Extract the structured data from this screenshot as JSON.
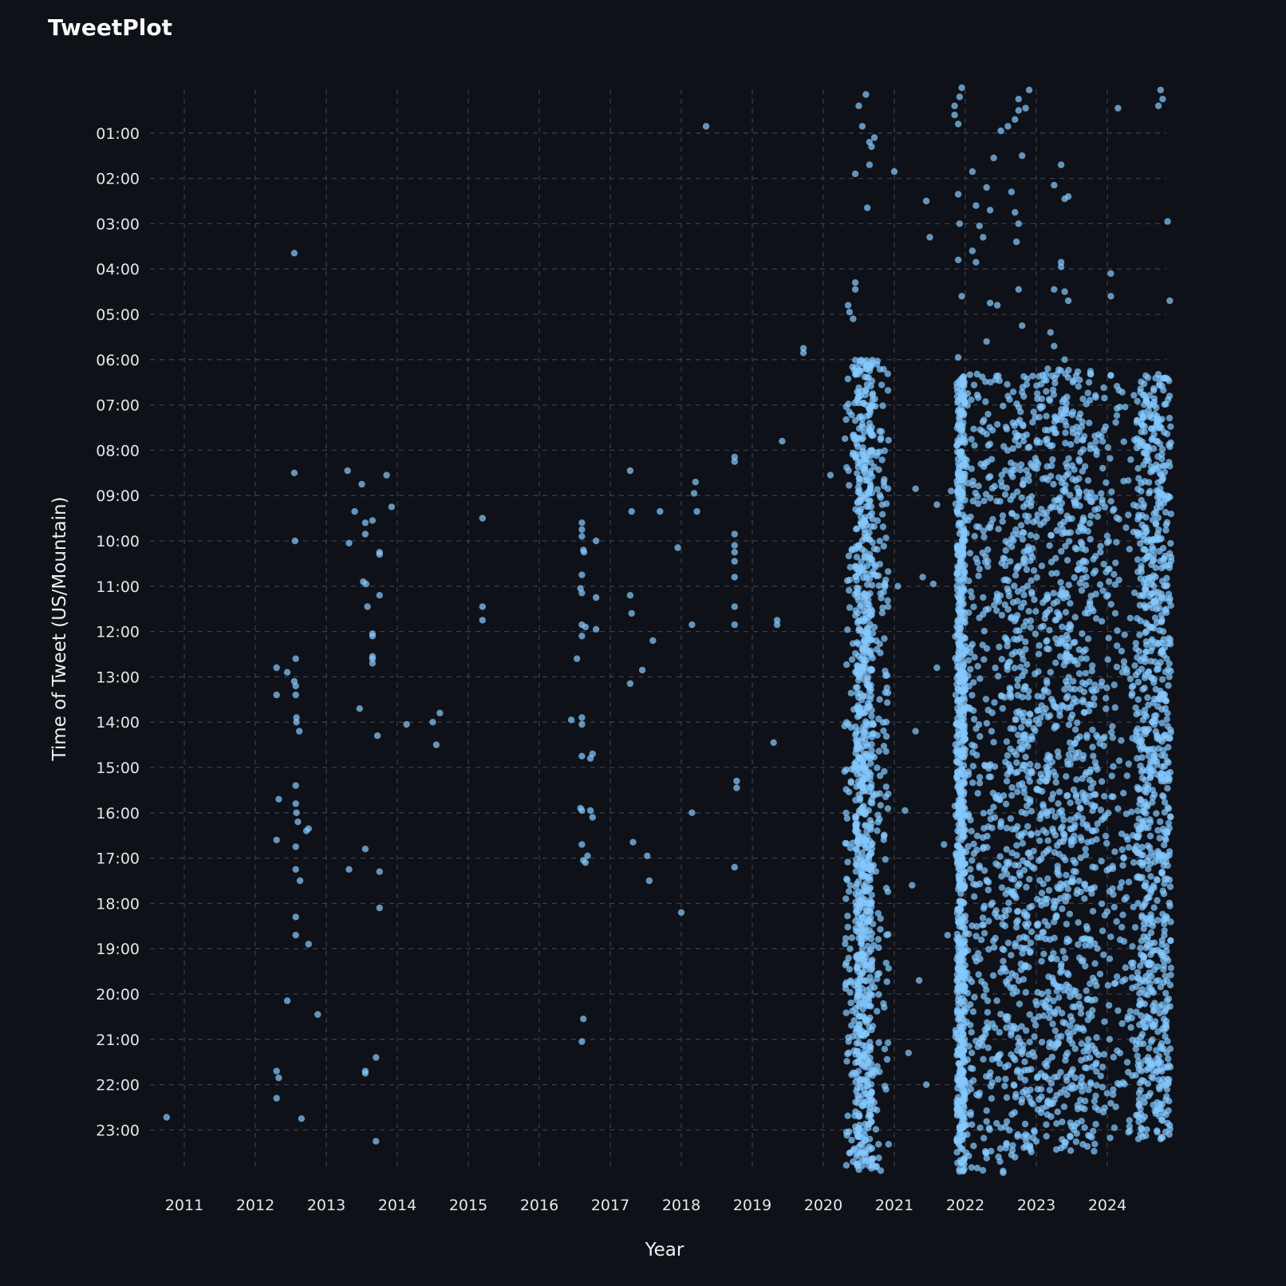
{
  "app": {
    "title": "TweetPlot"
  },
  "colors": {
    "background": "#0e1117",
    "point": "#83c9ff",
    "grid": "#3a3d46",
    "text": "#fafafa"
  },
  "chart_data": {
    "type": "scatter",
    "title": "",
    "xlabel": "Year",
    "ylabel": "Time of Tweet (US/Mountain)",
    "x_unit": "year (decimal)",
    "y_unit": "hour of day (decimal)",
    "xlim": [
      2010.75,
      2024.9
    ],
    "ylim": [
      0.0,
      24.0
    ],
    "y_inverted": true,
    "grid": true,
    "legend": "none",
    "x_ticks": [
      "2011",
      "2012",
      "2013",
      "2014",
      "2015",
      "2016",
      "2017",
      "2018",
      "2019",
      "2020",
      "2021",
      "2022",
      "2023",
      "2024"
    ],
    "y_ticks": [
      "01:00",
      "02:00",
      "03:00",
      "04:00",
      "05:00",
      "06:00",
      "07:00",
      "08:00",
      "09:00",
      "10:00",
      "11:00",
      "12:00",
      "13:00",
      "14:00",
      "15:00",
      "16:00",
      "17:00",
      "18:00",
      "19:00",
      "20:00",
      "21:00",
      "22:00",
      "23:00"
    ],
    "series": [
      {
        "points": [
          [
            2010.75,
            22.72
          ],
          [
            2012.3,
            12.8
          ],
          [
            2012.3,
            13.4
          ],
          [
            2012.33,
            15.7
          ],
          [
            2012.3,
            16.6
          ],
          [
            2012.3,
            21.7
          ],
          [
            2012.33,
            21.85
          ],
          [
            2012.3,
            22.3
          ],
          [
            2012.45,
            12.9
          ],
          [
            2012.45,
            20.15
          ],
          [
            2012.55,
            3.65
          ],
          [
            2012.55,
            8.5
          ],
          [
            2012.56,
            10.0
          ],
          [
            2012.57,
            12.6
          ],
          [
            2012.55,
            13.1
          ],
          [
            2012.57,
            13.2
          ],
          [
            2012.57,
            13.4
          ],
          [
            2012.58,
            13.9
          ],
          [
            2012.58,
            14.0
          ],
          [
            2012.62,
            14.2
          ],
          [
            2012.57,
            15.4
          ],
          [
            2012.57,
            15.8
          ],
          [
            2012.58,
            16.0
          ],
          [
            2012.6,
            16.2
          ],
          [
            2012.72,
            16.4
          ],
          [
            2012.75,
            16.35
          ],
          [
            2012.57,
            16.75
          ],
          [
            2012.57,
            17.25
          ],
          [
            2012.63,
            17.5
          ],
          [
            2012.57,
            18.3
          ],
          [
            2012.57,
            18.7
          ],
          [
            2012.75,
            18.9
          ],
          [
            2012.65,
            22.75
          ],
          [
            2012.88,
            20.45
          ],
          [
            2013.3,
            8.45
          ],
          [
            2013.32,
            10.05
          ],
          [
            2013.4,
            9.35
          ],
          [
            2013.5,
            8.75
          ],
          [
            2013.55,
            9.6
          ],
          [
            2013.55,
            9.85
          ],
          [
            2013.52,
            10.9
          ],
          [
            2013.56,
            10.95
          ],
          [
            2013.47,
            13.7
          ],
          [
            2013.58,
            11.45
          ],
          [
            2013.65,
            9.55
          ],
          [
            2013.75,
            10.3
          ],
          [
            2013.75,
            10.25
          ],
          [
            2013.75,
            11.2
          ],
          [
            2013.65,
            12.05
          ],
          [
            2013.65,
            12.1
          ],
          [
            2013.65,
            12.55
          ],
          [
            2013.65,
            12.6
          ],
          [
            2013.65,
            12.7
          ],
          [
            2013.72,
            14.3
          ],
          [
            2013.55,
            16.8
          ],
          [
            2013.32,
            17.25
          ],
          [
            2013.75,
            17.3
          ],
          [
            2013.75,
            18.1
          ],
          [
            2013.7,
            21.4
          ],
          [
            2013.55,
            21.75
          ],
          [
            2013.55,
            21.7
          ],
          [
            2013.7,
            23.25
          ],
          [
            2013.85,
            8.55
          ],
          [
            2013.92,
            9.25
          ],
          [
            2014.13,
            14.05
          ],
          [
            2014.5,
            14.0
          ],
          [
            2014.55,
            14.5
          ],
          [
            2014.6,
            13.8
          ],
          [
            2015.2,
            9.5
          ],
          [
            2015.2,
            11.45
          ],
          [
            2015.2,
            11.75
          ],
          [
            2016.45,
            13.95
          ],
          [
            2016.53,
            12.6
          ],
          [
            2016.6,
            9.6
          ],
          [
            2016.6,
            9.75
          ],
          [
            2016.6,
            9.9
          ],
          [
            2016.62,
            10.2
          ],
          [
            2016.63,
            10.25
          ],
          [
            2016.6,
            10.75
          ],
          [
            2016.58,
            11.05
          ],
          [
            2016.6,
            11.15
          ],
          [
            2016.6,
            11.85
          ],
          [
            2016.6,
            12.1
          ],
          [
            2016.65,
            11.9
          ],
          [
            2016.6,
            13.9
          ],
          [
            2016.6,
            14.05
          ],
          [
            2016.6,
            14.75
          ],
          [
            2016.72,
            14.8
          ],
          [
            2016.75,
            14.7
          ],
          [
            2016.58,
            15.9
          ],
          [
            2016.6,
            15.95
          ],
          [
            2016.72,
            15.95
          ],
          [
            2016.75,
            16.1
          ],
          [
            2016.6,
            16.7
          ],
          [
            2016.65,
            17.1
          ],
          [
            2016.68,
            16.95
          ],
          [
            2016.62,
            17.05
          ],
          [
            2016.62,
            20.55
          ],
          [
            2016.6,
            21.05
          ],
          [
            2016.8,
            10.0
          ],
          [
            2016.8,
            11.25
          ],
          [
            2016.8,
            11.95
          ],
          [
            2017.28,
            8.45
          ],
          [
            2017.3,
            9.35
          ],
          [
            2017.28,
            11.2
          ],
          [
            2017.3,
            11.6
          ],
          [
            2017.28,
            13.15
          ],
          [
            2017.32,
            16.65
          ],
          [
            2017.45,
            12.85
          ],
          [
            2017.52,
            16.95
          ],
          [
            2017.55,
            17.5
          ],
          [
            2017.6,
            12.2
          ],
          [
            2017.7,
            9.35
          ],
          [
            2017.95,
            10.15
          ],
          [
            2018.0,
            18.2
          ],
          [
            2018.15,
            11.85
          ],
          [
            2018.15,
            16.0
          ],
          [
            2018.18,
            8.95
          ],
          [
            2018.2,
            8.7
          ],
          [
            2018.22,
            9.35
          ],
          [
            2018.35,
            0.85
          ],
          [
            2018.75,
            8.15
          ],
          [
            2018.75,
            8.25
          ],
          [
            2018.75,
            9.85
          ],
          [
            2018.75,
            10.1
          ],
          [
            2018.75,
            10.25
          ],
          [
            2018.75,
            10.45
          ],
          [
            2018.75,
            10.8
          ],
          [
            2018.75,
            11.45
          ],
          [
            2018.75,
            11.85
          ],
          [
            2018.78,
            15.3
          ],
          [
            2018.78,
            15.45
          ],
          [
            2018.75,
            17.2
          ],
          [
            2019.3,
            14.45
          ],
          [
            2019.35,
            11.75
          ],
          [
            2019.35,
            11.85
          ],
          [
            2019.42,
            7.8
          ],
          [
            2019.72,
            5.75
          ],
          [
            2019.72,
            5.85
          ],
          [
            2020.1,
            8.55
          ],
          [
            2020.35,
            4.8
          ],
          [
            2020.37,
            4.95
          ],
          [
            2020.42,
            5.1
          ],
          [
            2020.45,
            4.3
          ],
          [
            2020.45,
            4.45
          ],
          [
            2020.45,
            1.9
          ],
          [
            2020.5,
            0.4
          ],
          [
            2020.55,
            0.85
          ],
          [
            2020.6,
            0.15
          ],
          [
            2020.62,
            2.65
          ],
          [
            2020.65,
            1.7
          ],
          [
            2020.72,
            1.1
          ],
          [
            2020.68,
            1.3
          ],
          [
            2020.6,
            23.5
          ],
          [
            2020.75,
            23.8
          ],
          [
            2020.65,
            1.2
          ],
          [
            2021.0,
            1.85
          ],
          [
            2021.05,
            11.0
          ],
          [
            2021.25,
            17.6
          ],
          [
            2021.3,
            14.2
          ],
          [
            2021.35,
            19.7
          ],
          [
            2021.2,
            21.3
          ],
          [
            2021.4,
            10.8
          ],
          [
            2021.45,
            2.5
          ],
          [
            2021.5,
            3.3
          ],
          [
            2021.6,
            9.2
          ],
          [
            2021.3,
            8.85
          ],
          [
            2021.15,
            15.95
          ],
          [
            2021.7,
            16.7
          ],
          [
            2021.75,
            18.7
          ],
          [
            2021.45,
            22.0
          ],
          [
            2021.6,
            12.8
          ],
          [
            2021.55,
            10.95
          ],
          [
            2021.8,
            8.9
          ],
          [
            2021.85,
            0.4
          ],
          [
            2021.85,
            0.6
          ],
          [
            2021.9,
            0.8
          ],
          [
            2021.92,
            0.2
          ],
          [
            2021.95,
            0.0
          ],
          [
            2021.9,
            2.35
          ],
          [
            2021.92,
            3.0
          ],
          [
            2021.9,
            3.8
          ],
          [
            2021.95,
            4.6
          ],
          [
            2021.9,
            5.95
          ],
          [
            2022.1,
            1.85
          ],
          [
            2022.15,
            2.6
          ],
          [
            2022.2,
            3.05
          ],
          [
            2022.25,
            3.3
          ],
          [
            2022.1,
            3.6
          ],
          [
            2022.15,
            3.85
          ],
          [
            2022.3,
            2.2
          ],
          [
            2022.35,
            2.7
          ],
          [
            2022.4,
            1.55
          ],
          [
            2022.5,
            0.95
          ],
          [
            2022.6,
            0.85
          ],
          [
            2022.7,
            0.7
          ],
          [
            2022.75,
            0.5
          ],
          [
            2022.65,
            2.3
          ],
          [
            2022.7,
            2.75
          ],
          [
            2022.75,
            3.0
          ],
          [
            2022.72,
            3.4
          ],
          [
            2022.8,
            1.5
          ],
          [
            2022.85,
            0.45
          ],
          [
            2022.75,
            0.25
          ],
          [
            2022.9,
            0.05
          ],
          [
            2022.75,
            4.45
          ],
          [
            2022.8,
            5.25
          ],
          [
            2022.35,
            4.75
          ],
          [
            2022.45,
            4.8
          ],
          [
            2022.3,
            5.6
          ],
          [
            2023.25,
            2.15
          ],
          [
            2023.35,
            1.7
          ],
          [
            2023.45,
            2.4
          ],
          [
            2023.4,
            2.45
          ],
          [
            2023.25,
            4.45
          ],
          [
            2023.35,
            3.85
          ],
          [
            2023.35,
            3.95
          ],
          [
            2023.4,
            4.5
          ],
          [
            2023.45,
            4.7
          ],
          [
            2023.2,
            5.4
          ],
          [
            2023.25,
            5.7
          ],
          [
            2023.4,
            6.0
          ],
          [
            2024.05,
            4.1
          ],
          [
            2024.05,
            4.6
          ],
          [
            2024.15,
            0.45
          ],
          [
            2024.05,
            6.35
          ],
          [
            2024.75,
            0.05
          ],
          [
            2024.78,
            0.25
          ],
          [
            2024.72,
            0.4
          ],
          [
            2024.85,
            2.95
          ],
          [
            2024.88,
            4.7
          ],
          [
            2023.35,
            23.4
          ],
          [
            2023.0,
            23.25
          ],
          [
            2023.3,
            22.6
          ],
          [
            2022.5,
            22.95
          ],
          [
            2022.7,
            23.6
          ],
          [
            2022.85,
            23.1
          ],
          [
            2024.1,
            22.95
          ],
          [
            2024.75,
            23.2
          ],
          [
            2024.85,
            22.85
          ],
          [
            2024.88,
            22.9
          ],
          [
            2022.65,
            23.55
          ]
        ],
        "clusters": [
          {
            "x_range": [
              2020.3,
              2020.92
            ],
            "y_range": [
              6.0,
              23.9
            ],
            "count": 1100,
            "dense_x_range": [
              2020.45,
              2020.7
            ]
          },
          {
            "x_range": [
              2021.85,
              2022.55
            ],
            "y_range": [
              6.3,
              23.95
            ],
            "count": 1100,
            "dense_x_range": [
              2021.88,
              2022.0
            ]
          },
          {
            "x_range": [
              2022.55,
              2023.85
            ],
            "y_range": [
              6.2,
              23.5
            ],
            "count": 1300
          },
          {
            "x_range": [
              2023.85,
              2024.9
            ],
            "y_range": [
              6.3,
              23.2
            ],
            "count": 1100,
            "dense_x_range": [
              2024.4,
              2024.9
            ]
          }
        ]
      }
    ]
  }
}
